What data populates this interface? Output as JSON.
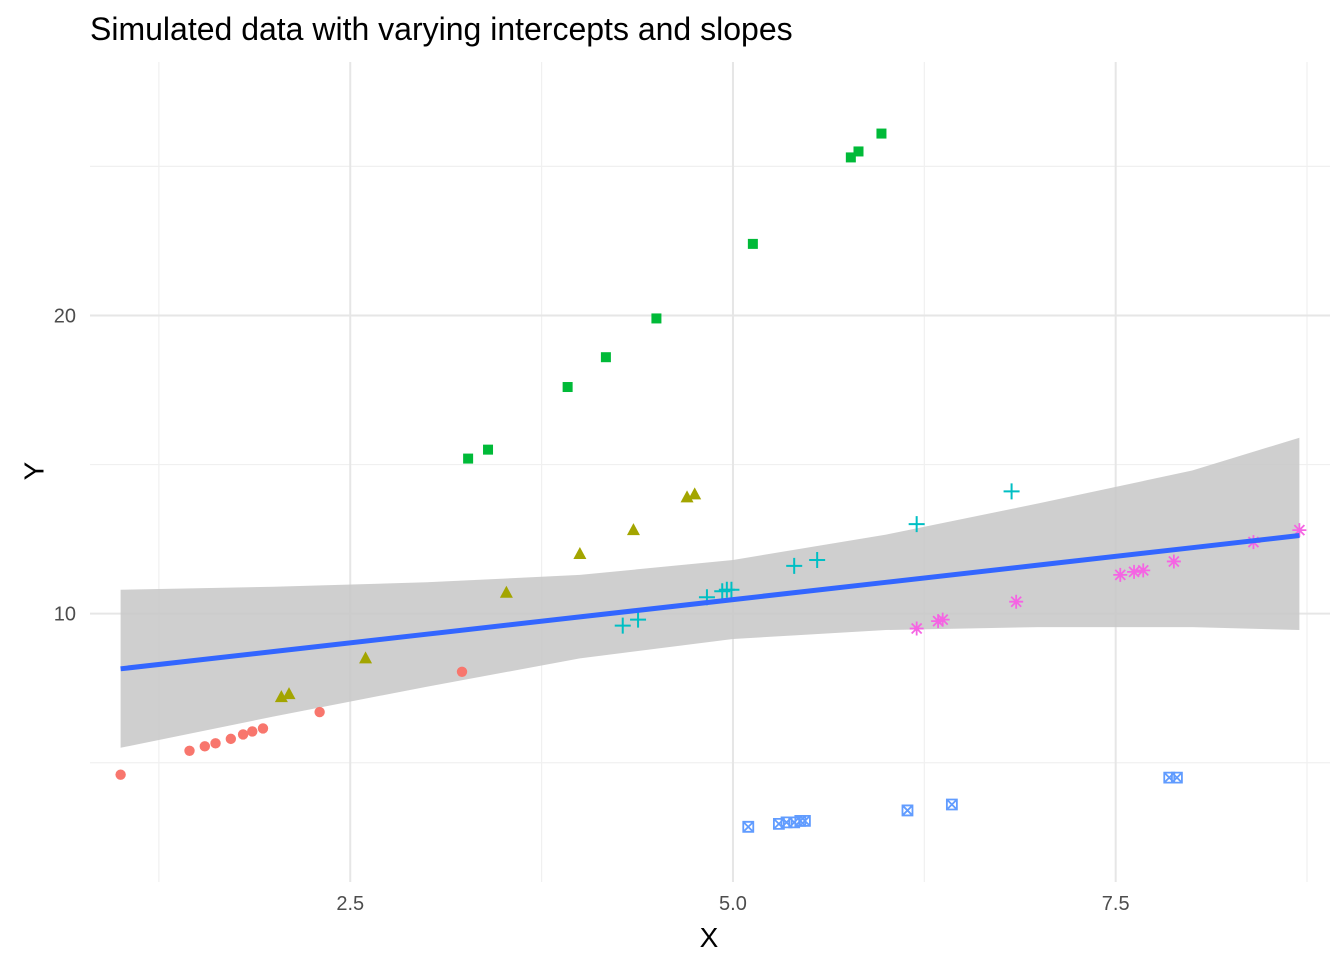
{
  "chart_data": {
    "type": "scatter",
    "title": "Simulated data with varying intercepts and slopes",
    "xlabel": "X",
    "ylabel": "Y",
    "xlim": [
      0.8,
      8.9
    ],
    "ylim": [
      1.0,
      28.5
    ],
    "x_ticks": [
      2.5,
      5.0,
      7.5
    ],
    "x_tick_labels": [
      "2.5",
      "5.0",
      "7.5"
    ],
    "y_ticks": [
      10,
      20
    ],
    "y_tick_labels": [
      "10",
      "20"
    ],
    "grid": true,
    "legend": "none",
    "series": [
      {
        "color": "#F8766D",
        "shape": "circle",
        "points": [
          [
            1.0,
            4.6
          ],
          [
            1.45,
            5.4
          ],
          [
            1.55,
            5.55
          ],
          [
            1.62,
            5.65
          ],
          [
            1.72,
            5.8
          ],
          [
            1.8,
            5.95
          ],
          [
            1.86,
            6.05
          ],
          [
            1.93,
            6.15
          ],
          [
            2.3,
            6.7
          ],
          [
            3.23,
            8.05
          ]
        ]
      },
      {
        "color": "#A3A500",
        "shape": "triangle",
        "points": [
          [
            2.05,
            7.2
          ],
          [
            2.1,
            7.3
          ],
          [
            2.6,
            8.5
          ],
          [
            3.52,
            10.7
          ],
          [
            4.0,
            12.0
          ],
          [
            4.35,
            12.8
          ],
          [
            4.7,
            13.9
          ],
          [
            4.75,
            14.0
          ]
        ]
      },
      {
        "color": "#00BA38",
        "shape": "square",
        "points": [
          [
            3.27,
            15.2
          ],
          [
            3.4,
            15.5
          ],
          [
            3.92,
            17.6
          ],
          [
            4.17,
            18.6
          ],
          [
            4.5,
            19.9
          ],
          [
            5.13,
            22.4
          ],
          [
            5.77,
            25.3
          ],
          [
            5.82,
            25.5
          ],
          [
            5.97,
            26.1
          ]
        ]
      },
      {
        "color": "#00BFC4",
        "shape": "plus",
        "points": [
          [
            4.28,
            9.6
          ],
          [
            4.38,
            9.8
          ],
          [
            4.83,
            10.55
          ],
          [
            4.93,
            10.75
          ],
          [
            4.96,
            10.8
          ],
          [
            4.99,
            10.8
          ],
          [
            5.4,
            11.6
          ],
          [
            5.55,
            11.8
          ],
          [
            6.2,
            13.0
          ],
          [
            6.82,
            14.1
          ]
        ]
      },
      {
        "color": "#619CFF",
        "shape": "square-cross",
        "points": [
          [
            5.1,
            2.85
          ],
          [
            5.3,
            2.95
          ],
          [
            5.35,
            3.0
          ],
          [
            5.4,
            3.0
          ],
          [
            5.44,
            3.05
          ],
          [
            5.47,
            3.05
          ],
          [
            6.14,
            3.4
          ],
          [
            6.43,
            3.6
          ],
          [
            7.85,
            4.5
          ],
          [
            7.9,
            4.5
          ]
        ]
      },
      {
        "color": "#F564E3",
        "shape": "asterisk",
        "points": [
          [
            6.2,
            9.5
          ],
          [
            6.34,
            9.75
          ],
          [
            6.37,
            9.8
          ],
          [
            6.85,
            10.4
          ],
          [
            7.53,
            11.3
          ],
          [
            7.62,
            11.4
          ],
          [
            7.68,
            11.45
          ],
          [
            7.88,
            11.75
          ],
          [
            8.4,
            12.4
          ],
          [
            8.7,
            12.8
          ]
        ]
      }
    ],
    "fit": {
      "method": "lm",
      "color": "#3366FF",
      "band_color": "#c7c7c7",
      "x": [
        1.0,
        2.0,
        3.0,
        4.0,
        5.0,
        6.0,
        7.0,
        8.0,
        8.7
      ],
      "y": [
        8.15,
        8.73,
        9.31,
        9.89,
        10.47,
        11.05,
        11.63,
        12.21,
        12.62
      ],
      "ymin": [
        5.5,
        6.55,
        7.55,
        8.5,
        9.15,
        9.45,
        9.55,
        9.55,
        9.45
      ],
      "ymax": [
        10.8,
        10.9,
        11.05,
        11.3,
        11.8,
        12.65,
        13.7,
        14.8,
        15.9
      ]
    }
  }
}
